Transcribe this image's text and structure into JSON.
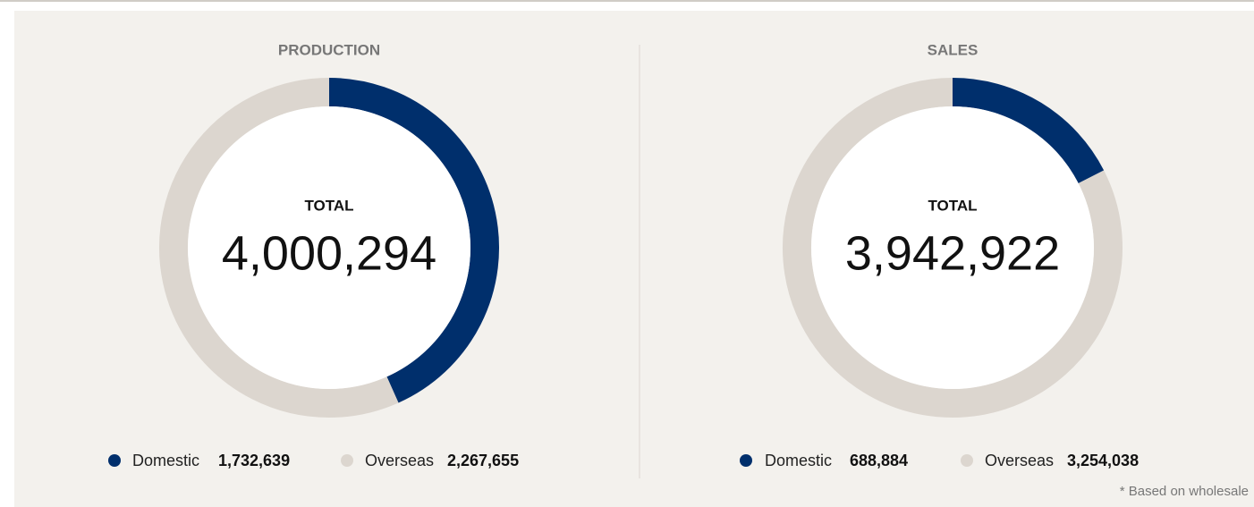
{
  "chart_data": [
    {
      "type": "pie",
      "title": "PRODUCTION",
      "center_label": "TOTAL",
      "total": {
        "value": 4000294,
        "label": "4,000,294"
      },
      "categories": [
        "Domestic",
        "Overseas"
      ],
      "values": [
        1732639,
        2267655
      ],
      "value_labels": [
        "1,732,639",
        "2,267,655"
      ],
      "colors": [
        "#002f6c",
        "#dcd6cf"
      ]
    },
    {
      "type": "pie",
      "title": "SALES",
      "center_label": "TOTAL",
      "total": {
        "value": 3942922,
        "label": "3,942,922"
      },
      "categories": [
        "Domestic",
        "Overseas"
      ],
      "values": [
        688884,
        3254038
      ],
      "value_labels": [
        "688,884",
        "3,254,038"
      ],
      "colors": [
        "#002f6c",
        "#dcd6cf"
      ]
    }
  ],
  "footnote": "* Based on wholesale"
}
